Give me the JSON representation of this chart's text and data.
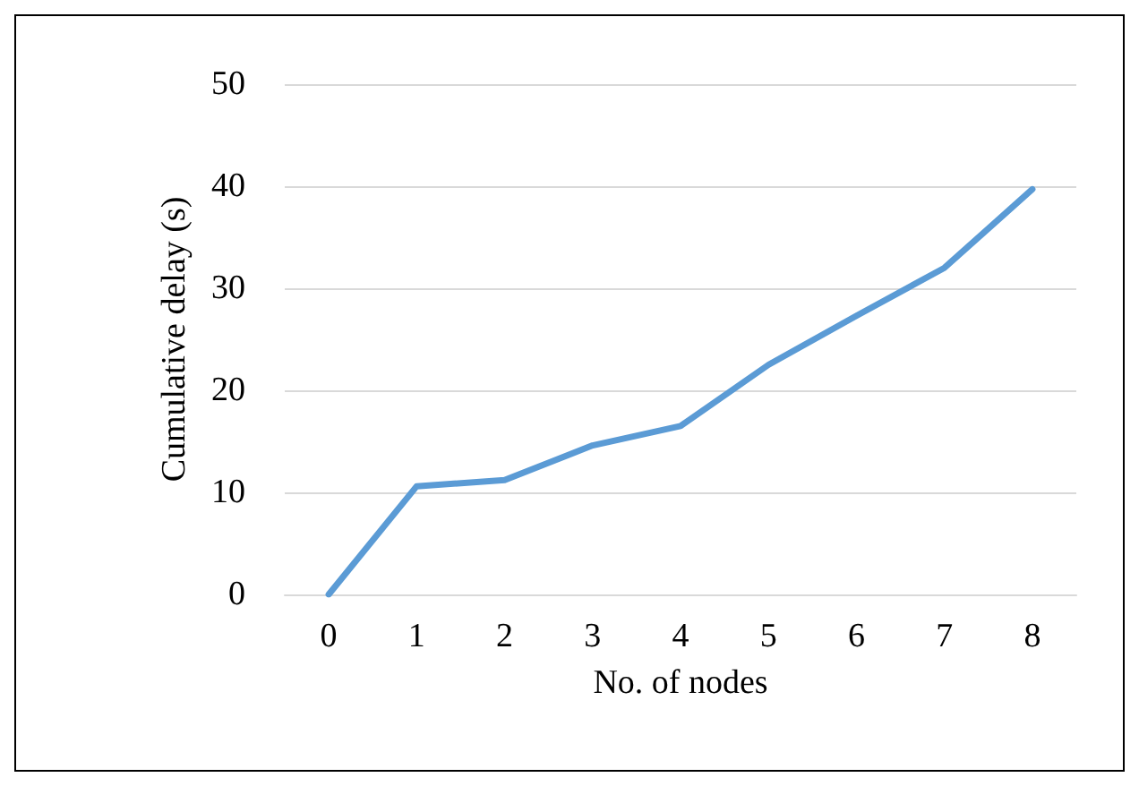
{
  "chart_data": {
    "type": "line",
    "xlabel": "No. of nodes",
    "ylabel": "Cumulative delay (s)",
    "categories": [
      "0",
      "1",
      "2",
      "3",
      "4",
      "5",
      "6",
      "7",
      "8"
    ],
    "series": [
      {
        "color": "#5b9bd5",
        "values": [
          0,
          10.6,
          11.2,
          14.6,
          16.5,
          22.5,
          27.3,
          32.0,
          39.7
        ]
      }
    ],
    "ylim": [
      0,
      50
    ],
    "yticks": [
      0,
      10,
      20,
      30,
      40,
      50
    ],
    "grid": "y",
    "marker": "none",
    "line_style": "solid"
  }
}
